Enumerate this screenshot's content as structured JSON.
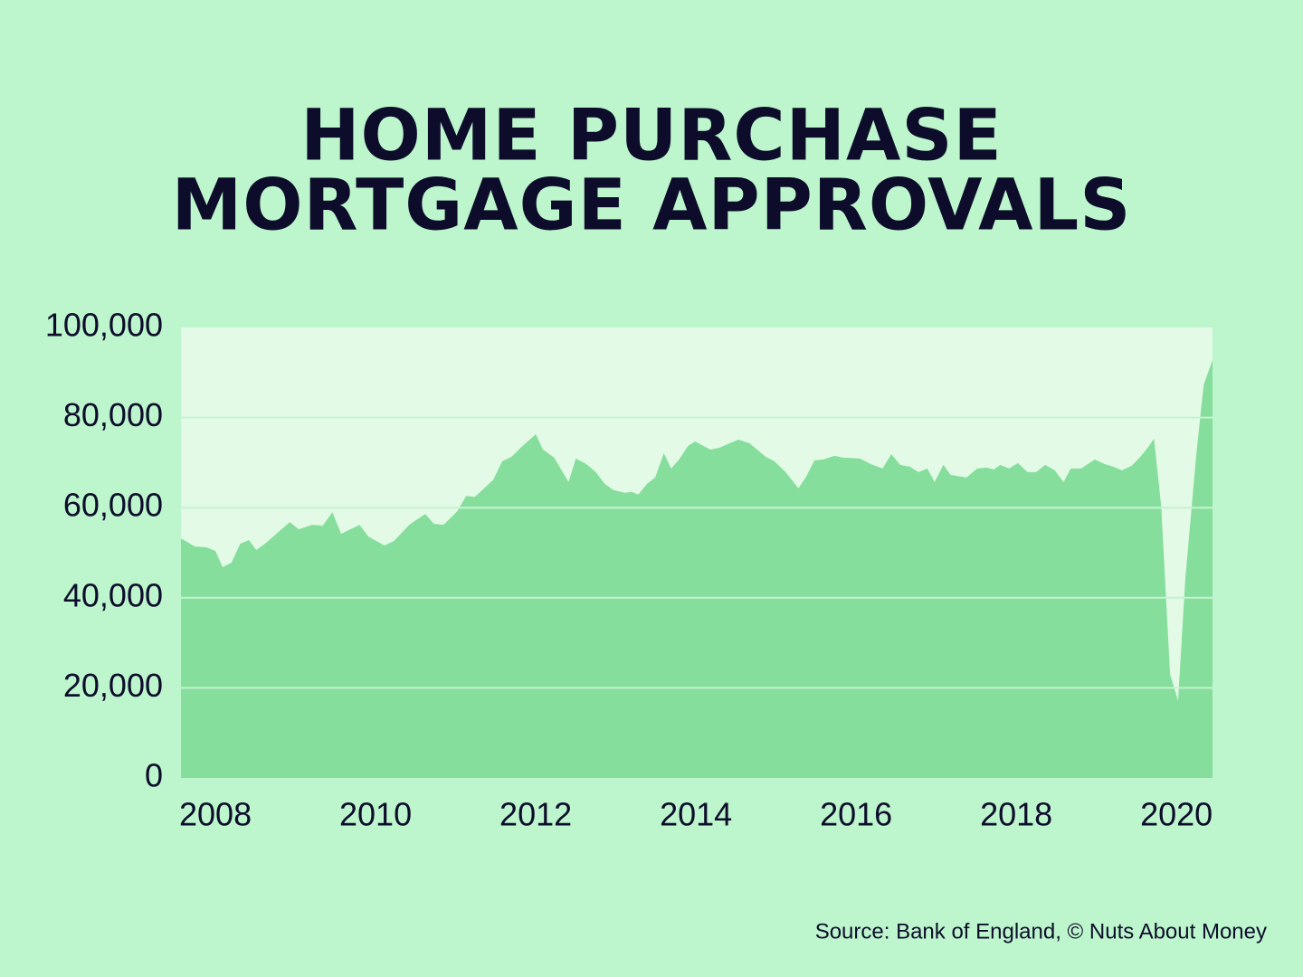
{
  "chart_data": {
    "type": "area",
    "title": [
      "HOME PURCHASE",
      "MORTGAGE APPROVALS"
    ],
    "source": "Source: Bank of England, © Nuts About Money",
    "color": "#86de9c",
    "grid": true,
    "xlim": [
      2007.57,
      2020.45
    ],
    "xticks": [
      2008,
      2010,
      2012,
      2014,
      2016,
      2018,
      2020
    ],
    "ylim": [
      0,
      100000
    ],
    "yticks": [
      0,
      {
        "value": 20000,
        "label": "20,000"
      },
      {
        "value": 40000,
        "label": "40,000"
      },
      {
        "value": 60000,
        "label": "60,000"
      },
      {
        "value": 80000,
        "label": "80,000"
      },
      {
        "value": 100000,
        "label": "100,000"
      }
    ],
    "x": [
      2007.57,
      2007.74,
      2007.89,
      2008.0,
      2008.09,
      2008.2,
      2008.31,
      2008.42,
      2008.51,
      2008.62,
      2008.76,
      2008.93,
      2009.04,
      2009.21,
      2009.34,
      2009.46,
      2009.57,
      2009.8,
      2009.91,
      2010.11,
      2010.23,
      2010.42,
      2010.62,
      2010.73,
      2010.85,
      2011.02,
      2011.13,
      2011.24,
      2011.47,
      2011.58,
      2011.7,
      2011.81,
      2012.0,
      2012.09,
      2012.23,
      2012.41,
      2012.5,
      2012.63,
      2012.75,
      2012.86,
      2012.97,
      2013.11,
      2013.2,
      2013.28,
      2013.39,
      2013.49,
      2013.6,
      2013.69,
      2013.79,
      2013.9,
      2013.99,
      2014.18,
      2014.29,
      2014.42,
      2014.53,
      2014.67,
      2014.87,
      2014.98,
      2015.12,
      2015.28,
      2015.37,
      2015.48,
      2015.59,
      2015.73,
      2015.84,
      2016.05,
      2016.18,
      2016.33,
      2016.44,
      2016.55,
      2016.67,
      2016.78,
      2016.89,
      2016.98,
      2017.09,
      2017.18,
      2017.38,
      2017.51,
      2017.63,
      2017.72,
      2017.8,
      2017.91,
      2018.02,
      2018.14,
      2018.25,
      2018.36,
      2018.48,
      2018.59,
      2018.68,
      2018.81,
      2018.98,
      2019.1,
      2019.21,
      2019.32,
      2019.44,
      2019.55,
      2019.64,
      2019.72,
      2019.81,
      2019.92,
      2020.02,
      2020.11,
      2020.25,
      2020.34,
      2020.45
    ],
    "values": [
      53200,
      51400,
      51200,
      50400,
      46800,
      47800,
      52000,
      52800,
      50600,
      52000,
      54200,
      56800,
      55200,
      56200,
      56000,
      59000,
      54200,
      56200,
      53600,
      51600,
      52600,
      56200,
      58600,
      56400,
      56200,
      59200,
      62600,
      62400,
      66200,
      70300,
      71300,
      73300,
      76300,
      72900,
      71100,
      65700,
      70900,
      69700,
      67900,
      65300,
      63900,
      63300,
      63500,
      62900,
      65300,
      66700,
      72100,
      68700,
      70700,
      73700,
      74700,
      72900,
      73300,
      74300,
      75100,
      74300,
      71300,
      70300,
      67900,
      64300,
      66700,
      70500,
      70700,
      71500,
      71100,
      70900,
      69700,
      68700,
      71900,
      69500,
      69100,
      67900,
      68700,
      65700,
      69500,
      67300,
      66700,
      68700,
      68900,
      68500,
      69500,
      68700,
      69900,
      67900,
      67900,
      69500,
      68300,
      65700,
      68700,
      68700,
      70700,
      69700,
      69100,
      68300,
      69300,
      71300,
      73300,
      75300,
      60200,
      23100,
      17100,
      44200,
      72300,
      87300,
      92800
    ]
  }
}
